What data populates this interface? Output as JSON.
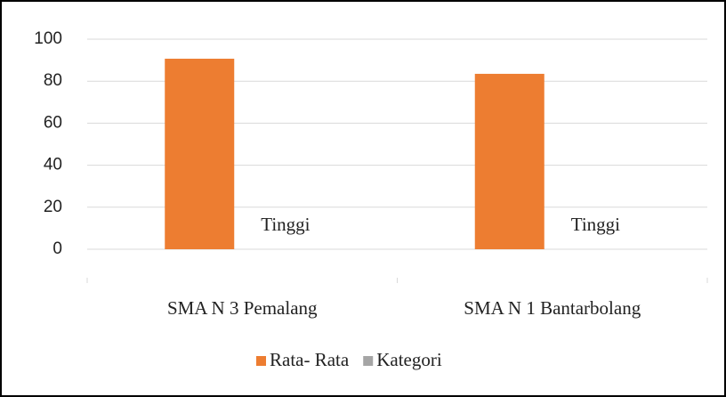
{
  "chart_data": {
    "type": "bar",
    "categories": [
      "SMA N 3 Pemalang",
      "SMA N 1 Bantarbolang"
    ],
    "series": [
      {
        "name": "Rata- Rata",
        "color": "#ed7d31",
        "values": [
          90.7,
          83.5
        ]
      },
      {
        "name": "Kategori",
        "color": "#a5a5a5",
        "values": [
          0,
          0
        ],
        "value_labels": [
          "Tinggi",
          "Tinggi"
        ]
      }
    ],
    "ylim": [
      0,
      100
    ],
    "yticks": [
      0,
      20,
      40,
      60,
      80,
      100
    ],
    "grid": true,
    "legend": "bottom"
  }
}
